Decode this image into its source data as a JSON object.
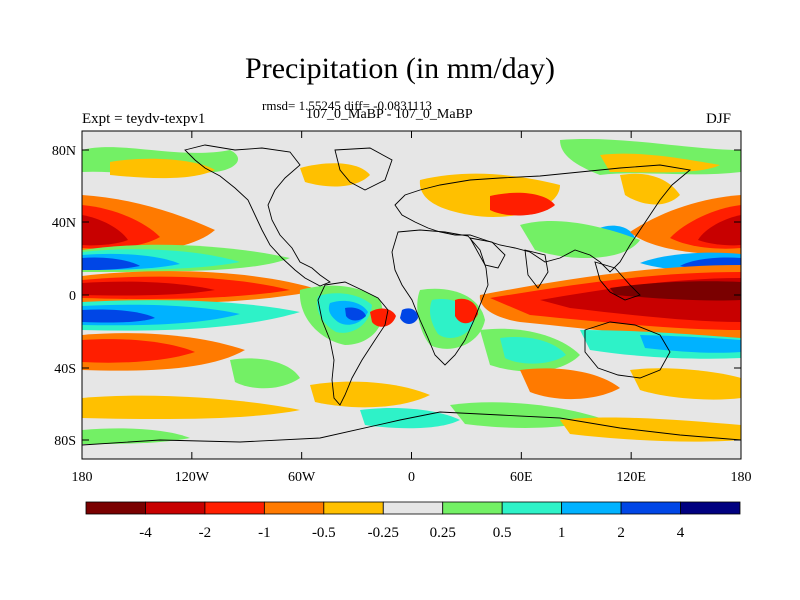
{
  "title": "Precipitation (in mm/day)",
  "stats_line": "rmsd= 1.55245 diff= -0.0831113",
  "period_line": "107_0_MaBP - 107_0_MaBP",
  "left_label": "Expt = teydv-texpv1",
  "right_label": "DJF",
  "map": {
    "y_ticks": [
      "80N",
      "40N",
      "0",
      "40S",
      "80S"
    ],
    "x_ticks": [
      "180",
      "120W",
      "60W",
      "0",
      "60E",
      "120E",
      "180"
    ],
    "colors": {
      "land_no_change": "#e6e6e6",
      "coastline": "#000000"
    }
  },
  "colorbar": {
    "colors": [
      "#7a0000",
      "#c80000",
      "#ff1e00",
      "#ff7a00",
      "#ffc000",
      "#e6e6e6",
      "#73f065",
      "#2ef2c8",
      "#00b2ff",
      "#0046e6",
      "#000080"
    ],
    "labels": [
      "-4",
      "-2",
      "-1",
      "-0.5",
      "-0.25",
      "0.25",
      "0.5",
      "1",
      "2",
      "4"
    ]
  }
}
